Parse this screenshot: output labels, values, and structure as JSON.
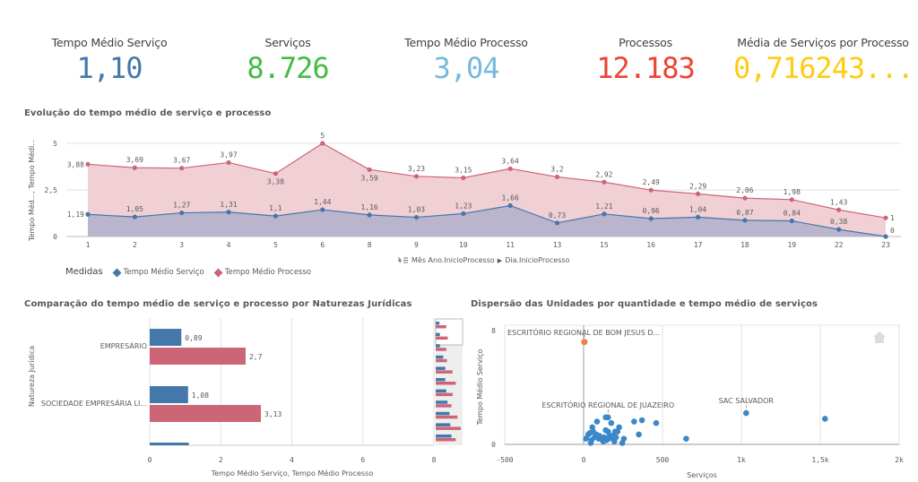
{
  "kpis": [
    {
      "label": "Tempo Médio Serviço",
      "value": "1,10",
      "color": "#4477aa"
    },
    {
      "label": "Serviços",
      "value": "8.726",
      "color": "#44bb44"
    },
    {
      "label": "Tempo Médio Processo",
      "value": "3,04",
      "color": "#77b9e0"
    },
    {
      "label": "Processos",
      "value": "12.183",
      "color": "#ee4433"
    },
    {
      "label": "Média de Serviços por Processo",
      "value": "0,716243...",
      "color": "#ffcc11"
    }
  ],
  "line_chart_title": "Evolução do tempo médio de serviço e processo",
  "legend": {
    "title": "Medidas",
    "items": [
      {
        "label": "Tempo Médio Serviço",
        "color": "#4477aa"
      },
      {
        "label": "Tempo Médio Processo",
        "color": "#cc6677"
      }
    ]
  },
  "drilldown": {
    "level1": "Mês Ano.InicioProcesso",
    "separator": "▶",
    "level2": "Dia.InicioProcesso"
  },
  "bar_chart_title": "Comparação do tempo médio de serviço e processo por Naturezas Jurídicas",
  "scatter_title": "Dispersão das Unidades por quantidade e tempo médio de serviços",
  "chart_data": [
    {
      "type": "area",
      "title": "Evolução do tempo médio de serviço e processo",
      "xlabel": "",
      "ylabel": "Tempo Méd..., Tempo Médi...",
      "ylim": [
        0,
        5
      ],
      "yticks": [
        "0",
        "2,5",
        "5"
      ],
      "yticks_values": [
        0,
        2.5,
        5
      ],
      "x": [
        "1",
        "2",
        "3",
        "4",
        "5",
        "6",
        "8",
        "9",
        "10",
        "11",
        "13",
        "15",
        "16",
        "17",
        "18",
        "19",
        "22",
        "23"
      ],
      "series": [
        {
          "name": "Tempo Médio Processo",
          "color": "#cc6677",
          "values": [
            3.88,
            3.69,
            3.67,
            3.97,
            3.38,
            5,
            3.59,
            3.23,
            3.15,
            3.64,
            3.2,
            2.92,
            2.49,
            2.29,
            2.06,
            1.98,
            1.43,
            1
          ],
          "labels": [
            "3,88",
            "3,69",
            "3,67",
            "3,97",
            "3,38",
            "5",
            "3,59",
            "3,23",
            "3,15",
            "3,64",
            "3,2",
            "2,92",
            "2,49",
            "2,29",
            "2,06",
            "1,98",
            "1,43",
            "1"
          ]
        },
        {
          "name": "Tempo Médio Serviço",
          "color": "#4477aa",
          "values": [
            1.19,
            1.05,
            1.27,
            1.31,
            1.1,
            1.44,
            1.16,
            1.03,
            1.23,
            1.66,
            0.73,
            1.21,
            0.96,
            1.04,
            0.87,
            0.84,
            0.38,
            0
          ],
          "labels": [
            "1,19",
            "1,05",
            "1,27",
            "1,31",
            "1,1",
            "1,44",
            "1,16",
            "1,03",
            "1,23",
            "1,66",
            "0,73",
            "1,21",
            "0,96",
            "1,04",
            "0,87",
            "0,84",
            "0,38",
            "0"
          ]
        }
      ],
      "legend": "bottom-left",
      "grid": true
    },
    {
      "type": "bar",
      "orientation": "horizontal",
      "title": "Comparação do tempo médio de serviço e processo por Naturezas Jurídicas",
      "ylabel": "Natureza Jurídica",
      "xlabel": "Tempo Médio Serviço, Tempo Médio Processo",
      "xlim": [
        0,
        8
      ],
      "xticks": [
        "0",
        "2",
        "4",
        "6",
        "8"
      ],
      "xticks_values": [
        0,
        2,
        4,
        6,
        8
      ],
      "categories": [
        "EMPRESÁRIO",
        "SOCIEDADE EMPRESÁRIA LI...",
        ""
      ],
      "series": [
        {
          "name": "Tempo Médio Serviço",
          "color": "#4477aa",
          "values": [
            0.89,
            1.08,
            1.1
          ],
          "labels": [
            "0,89",
            "1,08",
            ""
          ]
        },
        {
          "name": "Tempo Médio Processo",
          "color": "#cc6677",
          "values": [
            2.7,
            3.13,
            null
          ],
          "labels": [
            "2,7",
            "3,13",
            ""
          ]
        }
      ],
      "minimap": {
        "blue": [
          0.15,
          0.17,
          0.17,
          0.3,
          0.38,
          0.38,
          0.42,
          0.47,
          0.55,
          0.58,
          0.63
        ],
        "red": [
          0.42,
          0.48,
          0.42,
          0.45,
          0.67,
          0.8,
          0.68,
          0.63,
          0.87,
          1.0,
          0.8
        ]
      },
      "grid": true
    },
    {
      "type": "scatter",
      "title": "Dispersão das Unidades por quantidade e tempo médio de serviços",
      "xlabel": "Serviços",
      "ylabel": "Tempo Médio Serviço",
      "xlim": [
        -500,
        2000
      ],
      "ylim": [
        0,
        8
      ],
      "xticks": [
        "-500",
        "0",
        "500",
        "1k",
        "1,5k",
        "2k"
      ],
      "xticks_values": [
        -500,
        0,
        500,
        1000,
        1500,
        2000
      ],
      "yticks": [
        "0",
        "8"
      ],
      "yticks_values": [
        0,
        8
      ],
      "highlight": {
        "name": "ESCRITÓRIO REGIONAL DE BOM JESUS D...",
        "x": 5,
        "y": 7.2,
        "color": "#f08050"
      },
      "labeled_points": [
        {
          "name": "ESCRITÓRIO REGIONAL DE JUAZEIRO",
          "x": 155,
          "y": 1.9
        },
        {
          "name": "SAC SALVADOR",
          "x": 1030,
          "y": 2.2
        }
      ],
      "color": "#3a88c8",
      "points": [
        [
          1530,
          1.8
        ],
        [
          650,
          0.4
        ],
        [
          460,
          1.5
        ],
        [
          370,
          1.7
        ],
        [
          320,
          1.6
        ],
        [
          350,
          0.7
        ],
        [
          255,
          0.4
        ],
        [
          245,
          0.1
        ],
        [
          225,
          1.2
        ],
        [
          215,
          0.9
        ],
        [
          200,
          0.9
        ],
        [
          190,
          0.4
        ],
        [
          175,
          1.5
        ],
        [
          165,
          0.6
        ],
        [
          155,
          0.9
        ],
        [
          140,
          1.0
        ],
        [
          145,
          0.3
        ],
        [
          130,
          0.5
        ],
        [
          125,
          0.2
        ],
        [
          110,
          0.4
        ],
        [
          100,
          0.6
        ],
        [
          95,
          0.4
        ],
        [
          85,
          1.6
        ],
        [
          80,
          0.7
        ],
        [
          70,
          0.5
        ],
        [
          60,
          0.9
        ],
        [
          55,
          1.2
        ],
        [
          50,
          0.3
        ],
        [
          45,
          0.1
        ],
        [
          40,
          0.8
        ],
        [
          30,
          0.7
        ],
        [
          15,
          0.4
        ],
        [
          140,
          1.9
        ],
        [
          120,
          0.3
        ],
        [
          180,
          0.6
        ],
        [
          195,
          0.2
        ],
        [
          160,
          0.4
        ],
        [
          205,
          0.5
        ]
      ]
    }
  ]
}
